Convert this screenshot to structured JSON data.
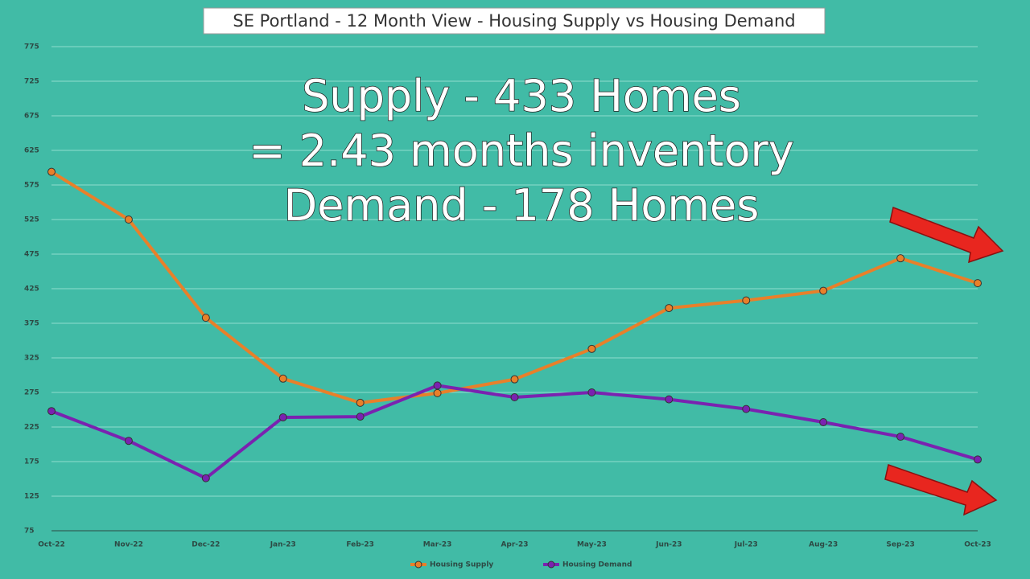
{
  "chart_data": {
    "type": "line",
    "title": "SE Portland - 12 Month View - Housing Supply vs Housing Demand",
    "annotations": [
      "Supply - 433 Homes",
      "= 2.43 months inventory",
      "Demand - 178 Homes"
    ],
    "categories": [
      "Oct-22",
      "Nov-22",
      "Dec-22",
      "Jan-23",
      "Feb-23",
      "Mar-23",
      "Apr-23",
      "May-23",
      "Jun-23",
      "Jul-23",
      "Aug-23",
      "Sep-23",
      "Oct-23"
    ],
    "series": [
      {
        "name": "Housing Supply",
        "color": "#e8802a",
        "values": [
          594,
          525,
          383,
          295,
          260,
          274,
          294,
          338,
          397,
          408,
          422,
          469,
          433
        ]
      },
      {
        "name": "Housing Demand",
        "color": "#7a22b0",
        "values": [
          248,
          205,
          151,
          239,
          240,
          285,
          268,
          275,
          265,
          251,
          232,
          211,
          178
        ]
      }
    ],
    "ylim": [
      75,
      775
    ],
    "yticks": [
      75,
      125,
      175,
      225,
      275,
      325,
      375,
      425,
      475,
      525,
      575,
      625,
      675,
      725,
      775
    ],
    "grid": true,
    "legend": "bottom"
  }
}
